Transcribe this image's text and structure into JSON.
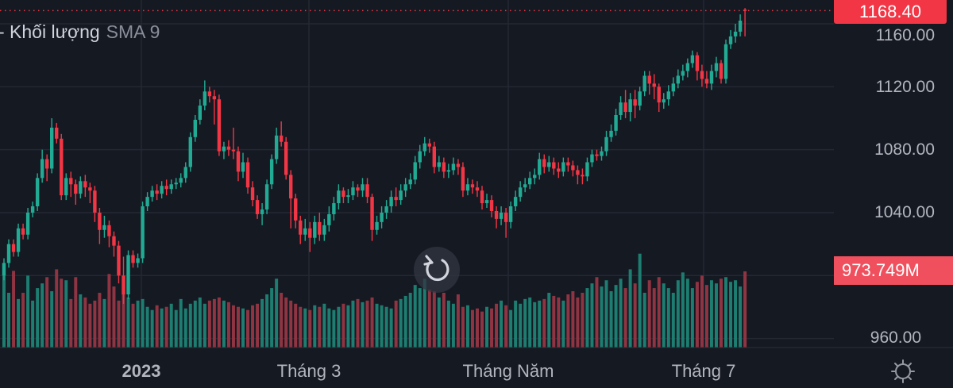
{
  "legend": {
    "volume_label": "- Khối lượng",
    "sma_label": "SMA 9"
  },
  "colors": {
    "up": "#22ab94",
    "down": "#f23645",
    "up_volume": "#1d7d70",
    "down_volume": "#8f3442",
    "background": "#151922",
    "grid": "#242833"
  },
  "price_axis": {
    "ticks": [
      "1160.00",
      "1120.00",
      "1080.00",
      "1040.00",
      "960.00"
    ],
    "tick_values": [
      1160,
      1120,
      1080,
      1040,
      960
    ],
    "last_price": "1168.40",
    "last_volume": "973.749M"
  },
  "time_axis": {
    "labels": [
      "2023",
      "Tháng 3",
      "Tháng Năm",
      "Tháng 7"
    ]
  },
  "icons": {
    "reset": "rotate-ccw-icon",
    "settings": "gear-icon"
  },
  "chart_data": {
    "type": "candlestick",
    "ylim": [
      960,
      1170
    ],
    "open": [
      1000,
      1008,
      1020,
      1015,
      1030,
      1026,
      1040,
      1044,
      1062,
      1074,
      1068,
      1094,
      1087,
      1051,
      1062,
      1058,
      1052,
      1060,
      1056,
      1054,
      1040,
      1029,
      1032,
      1025,
      1019,
      1000,
      988,
      1013,
      1008,
      1011,
      1044,
      1050,
      1054,
      1052,
      1057,
      1055,
      1058,
      1059,
      1062,
      1069,
      1088,
      1099,
      1108,
      1117,
      1114,
      1112,
      1079,
      1082,
      1080,
      1079,
      1066,
      1072,
      1056,
      1048,
      1039,
      1042,
      1058,
      1074,
      1089,
      1085,
      1064,
      1049,
      1035,
      1026,
      1030,
      1024,
      1034,
      1026,
      1032,
      1039,
      1046,
      1054,
      1050,
      1051,
      1056,
      1054,
      1058,
      1050,
      1029,
      1034,
      1040,
      1044,
      1050,
      1048,
      1054,
      1058,
      1061,
      1072,
      1079,
      1084,
      1082,
      1069,
      1072,
      1066,
      1067,
      1071,
      1069,
      1054,
      1058,
      1056,
      1054,
      1046,
      1048,
      1041,
      1036,
      1040,
      1034,
      1044,
      1050,
      1056,
      1058,
      1062,
      1064,
      1074,
      1069,
      1072,
      1068,
      1066,
      1072,
      1070,
      1067,
      1064,
      1063,
      1072,
      1077,
      1076,
      1079,
      1088,
      1092,
      1102,
      1110,
      1104,
      1112,
      1108,
      1117,
      1127,
      1122,
      1120,
      1110,
      1112,
      1117,
      1122,
      1127,
      1130,
      1135,
      1140,
      1130,
      1125,
      1122,
      1130,
      1135,
      1125,
      1147,
      1152,
      1155,
      1169
    ],
    "high": [
      1011,
      1023,
      1023,
      1033,
      1033,
      1043,
      1047,
      1065,
      1080,
      1077,
      1100,
      1097,
      1090,
      1065,
      1066,
      1061,
      1063,
      1064,
      1059,
      1057,
      1043,
      1038,
      1035,
      1028,
      1022,
      1012,
      1016,
      1016,
      1014,
      1047,
      1053,
      1057,
      1058,
      1060,
      1061,
      1061,
      1062,
      1065,
      1072,
      1091,
      1102,
      1112,
      1124,
      1120,
      1118,
      1115,
      1085,
      1086,
      1094,
      1082,
      1078,
      1075,
      1060,
      1051,
      1046,
      1061,
      1077,
      1094,
      1098,
      1088,
      1067,
      1052,
      1038,
      1036,
      1034,
      1038,
      1040,
      1036,
      1044,
      1050,
      1058,
      1056,
      1055,
      1060,
      1058,
      1062,
      1062,
      1052,
      1038,
      1044,
      1048,
      1054,
      1056,
      1058,
      1062,
      1065,
      1076,
      1083,
      1088,
      1087,
      1085,
      1076,
      1075,
      1071,
      1075,
      1074,
      1072,
      1062,
      1061,
      1060,
      1057,
      1052,
      1051,
      1044,
      1044,
      1043,
      1047,
      1054,
      1060,
      1062,
      1066,
      1068,
      1078,
      1077,
      1076,
      1075,
      1072,
      1075,
      1075,
      1073,
      1070,
      1068,
      1075,
      1080,
      1080,
      1082,
      1092,
      1096,
      1106,
      1114,
      1118,
      1116,
      1118,
      1120,
      1130,
      1130,
      1128,
      1122,
      1116,
      1121,
      1126,
      1131,
      1134,
      1138,
      1143,
      1142,
      1134,
      1130,
      1134,
      1139,
      1137,
      1150,
      1156,
      1160,
      1166,
      1170
    ],
    "low": [
      997,
      1005,
      1012,
      1012,
      1023,
      1023,
      1037,
      1041,
      1059,
      1060,
      1065,
      1084,
      1048,
      1048,
      1050,
      1045,
      1049,
      1050,
      1046,
      1034,
      1020,
      1024,
      1018,
      1012,
      995,
      982,
      985,
      1005,
      1005,
      1008,
      1041,
      1047,
      1048,
      1049,
      1051,
      1052,
      1055,
      1056,
      1059,
      1066,
      1085,
      1096,
      1105,
      1110,
      1096,
      1076,
      1074,
      1076,
      1074,
      1060,
      1062,
      1052,
      1044,
      1036,
      1032,
      1039,
      1055,
      1071,
      1082,
      1061,
      1030,
      1030,
      1020,
      1022,
      1015,
      1020,
      1022,
      1022,
      1028,
      1035,
      1042,
      1046,
      1046,
      1048,
      1050,
      1050,
      1046,
      1022,
      1026,
      1030,
      1036,
      1040,
      1044,
      1045,
      1050,
      1055,
      1058,
      1068,
      1076,
      1078,
      1065,
      1066,
      1062,
      1062,
      1064,
      1064,
      1050,
      1051,
      1052,
      1050,
      1042,
      1043,
      1037,
      1030,
      1032,
      1024,
      1030,
      1041,
      1047,
      1053,
      1055,
      1058,
      1061,
      1065,
      1066,
      1064,
      1062,
      1063,
      1066,
      1063,
      1058,
      1058,
      1060,
      1069,
      1073,
      1073,
      1076,
      1085,
      1089,
      1099,
      1100,
      1098,
      1100,
      1105,
      1114,
      1115,
      1112,
      1104,
      1106,
      1108,
      1114,
      1119,
      1124,
      1126,
      1132,
      1124,
      1120,
      1119,
      1118,
      1126,
      1122,
      1122,
      1144,
      1148,
      1152,
      1152
    ],
    "close": [
      1008,
      1020,
      1015,
      1030,
      1026,
      1040,
      1044,
      1062,
      1074,
      1068,
      1094,
      1087,
      1051,
      1062,
      1058,
      1052,
      1060,
      1056,
      1054,
      1040,
      1029,
      1032,
      1025,
      1019,
      1000,
      988,
      1013,
      1008,
      1011,
      1044,
      1050,
      1054,
      1052,
      1057,
      1055,
      1058,
      1059,
      1062,
      1069,
      1088,
      1099,
      1108,
      1117,
      1114,
      1112,
      1079,
      1082,
      1080,
      1079,
      1066,
      1072,
      1056,
      1048,
      1039,
      1042,
      1058,
      1074,
      1089,
      1085,
      1064,
      1049,
      1035,
      1026,
      1030,
      1024,
      1034,
      1026,
      1032,
      1039,
      1046,
      1054,
      1050,
      1051,
      1056,
      1054,
      1058,
      1050,
      1029,
      1034,
      1040,
      1044,
      1050,
      1048,
      1054,
      1058,
      1061,
      1072,
      1079,
      1084,
      1082,
      1069,
      1072,
      1066,
      1067,
      1071,
      1069,
      1054,
      1058,
      1056,
      1054,
      1046,
      1048,
      1041,
      1036,
      1040,
      1034,
      1044,
      1050,
      1056,
      1058,
      1062,
      1064,
      1074,
      1069,
      1072,
      1068,
      1066,
      1072,
      1070,
      1067,
      1064,
      1063,
      1072,
      1077,
      1076,
      1079,
      1088,
      1092,
      1102,
      1110,
      1104,
      1112,
      1108,
      1117,
      1127,
      1122,
      1120,
      1110,
      1112,
      1117,
      1122,
      1127,
      1130,
      1135,
      1140,
      1130,
      1125,
      1122,
      1130,
      1135,
      1125,
      1147,
      1152,
      1155,
      1162,
      1168.4
    ],
    "volume_millions": [
      950,
      700,
      980,
      620,
      700,
      920,
      600,
      760,
      820,
      900,
      720,
      1000,
      880,
      860,
      620,
      900,
      680,
      640,
      560,
      600,
      700,
      620,
      940,
      780,
      600,
      820,
      640,
      560,
      600,
      620,
      520,
      480,
      540,
      500,
      520,
      560,
      480,
      620,
      500,
      560,
      600,
      640,
      560,
      600,
      620,
      640,
      600,
      580,
      540,
      520,
      500,
      480,
      540,
      560,
      620,
      680,
      760,
      880,
      700,
      640,
      600,
      560,
      520,
      500,
      480,
      540,
      520,
      560,
      500,
      480,
      520,
      560,
      540,
      600,
      620,
      580,
      600,
      640,
      560,
      540,
      520,
      500,
      600,
      620,
      660,
      700,
      800,
      760,
      880,
      740,
      720,
      640,
      700,
      600,
      560,
      680,
      520,
      540,
      480,
      500,
      460,
      520,
      500,
      560,
      600,
      540,
      480,
      600,
      560,
      620,
      640,
      580,
      600,
      620,
      700,
      660,
      640,
      600,
      680,
      720,
      640,
      700,
      760,
      820,
      900,
      780,
      860,
      720,
      800,
      880,
      760,
      1000,
      820,
      1200,
      700,
      860,
      760,
      900,
      820,
      760,
      700,
      860,
      960,
      880,
      760,
      840,
      920,
      800,
      860,
      820,
      880,
      900,
      840,
      860,
      780,
      973.749
    ]
  }
}
